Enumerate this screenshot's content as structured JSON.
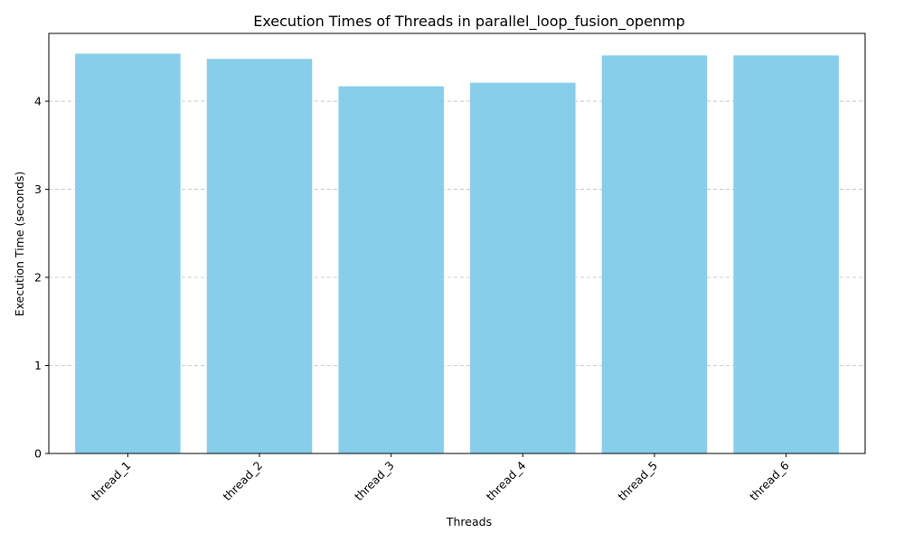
{
  "chart_data": {
    "type": "bar",
    "title": "Execution Times of Threads in parallel_loop_fusion_openmp",
    "xlabel": "Threads",
    "ylabel": "Execution Time (seconds)",
    "categories": [
      "thread_1",
      "thread_2",
      "thread_3",
      "thread_4",
      "thread_5",
      "thread_6"
    ],
    "values": [
      4.54,
      4.48,
      4.17,
      4.21,
      4.52,
      4.52
    ],
    "ylim": [
      0,
      4.77
    ],
    "yticks": [
      0,
      1,
      2,
      3,
      4
    ],
    "grid": "y-dashed",
    "bar_color": "#87ceeb",
    "grid_color": "#c0c0c0",
    "legend": "none"
  }
}
